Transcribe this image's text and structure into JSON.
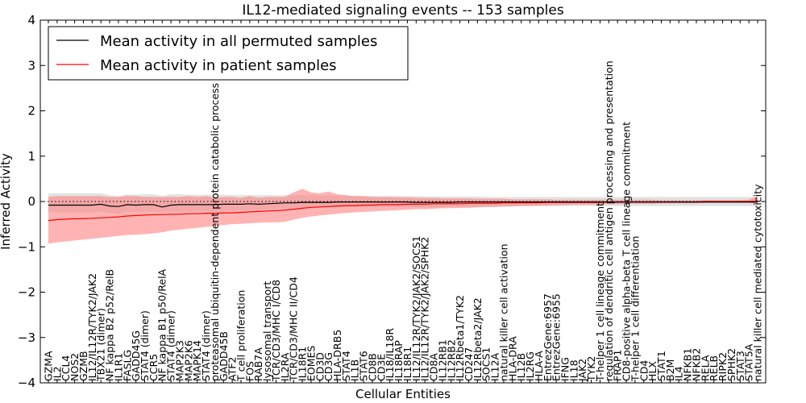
{
  "chart_data": {
    "type": "line",
    "title": "IL12-mediated signaling events -- 153 samples",
    "xlabel": "Cellular Entities",
    "ylabel": "Inferred Activity",
    "ylim": [
      -4,
      4
    ],
    "yticks": [
      -4,
      -3,
      -2,
      -1,
      0,
      1,
      2,
      3,
      4
    ],
    "grid": false,
    "legend_position": "top-left",
    "colors": {
      "permuted_line": "#000000",
      "permuted_band": "#bfbfbf",
      "patient_line": "#ff0000",
      "patient_band": "#ff8080"
    },
    "categories": [
      "GZMA",
      "IL2",
      "CCL4",
      "NOS2",
      "GZMB",
      "IL12/IL12R/TYK2/JAK2",
      "TBX21 (dimer)",
      "NF kappa B2 p52/RelB",
      "IL1R1",
      "FASLG",
      "GADD45G",
      "STAT4 (dimer)",
      "CCR5",
      "NF kappa B1 p50/RelA",
      "STAT4 (dimer)",
      "MAP2K3",
      "MAP2K6",
      "MAPK14",
      "STAT4 (dimer)",
      "proteasomal ubiquitin-dependent protein catabolic process",
      "GADD45B",
      "ATF2",
      "T cell proliferation",
      "FOS",
      "RAB7A",
      "lysosomal transport",
      "TCR/CD3/MHC I/CD8",
      "IL2RA",
      "TCR/CD3/MHC II/CD4",
      "IL18R1",
      "EOMES",
      "CD3D",
      "CD3G",
      "HLA-DRB5",
      "STAT4",
      "IL1B",
      "STAT6",
      "CD8B",
      "CD3E",
      "IL18/IL18R",
      "IL18RAP",
      "IL18R1",
      "IL12/IL12R/TYK2/JAK2/SOCS1",
      "IL12/IL12R/TYK2/JAK2/SPHK2",
      "CD8A",
      "IL12RB1",
      "IL12RB2",
      "IL12Rbeta1/TYK2",
      "CD247",
      "IL12Rbeta2/JAK2",
      "SOCS1",
      "IL12A",
      "natural killer cell activation",
      "HLA-DRA",
      "IL12B",
      "IL2RG",
      "HLA-A",
      "EntrezGene:6957",
      "EntrezGene:6955",
      "IFNG",
      "IL18",
      "JAK2",
      "TYK2",
      "T-helper 1 cell lineage commitment",
      "regulation of dendritic cell antigen processing and presentation",
      "FRAP1",
      "CD8-positive alpha-beta T cell lineage commitment",
      "T-helper 1 cell differentiation",
      "CD4",
      "HLX",
      "STAT1",
      "B2M",
      "IL4",
      "NFKB1",
      "NFKB2",
      "RELA",
      "RELB",
      "RIPK2",
      "SPHK2",
      "STAT3",
      "STAT5A",
      "natural killer cell mediated cytotoxicity"
    ],
    "series": [
      {
        "name": "Mean activity in all permuted samples",
        "values": [
          -0.08,
          -0.08,
          -0.08,
          -0.08,
          -0.08,
          -0.08,
          -0.06,
          -0.1,
          -0.11,
          -0.07,
          -0.08,
          -0.07,
          -0.07,
          -0.12,
          -0.08,
          -0.07,
          -0.07,
          -0.07,
          -0.07,
          -0.07,
          -0.06,
          -0.06,
          -0.06,
          -0.05,
          -0.06,
          -0.05,
          -0.04,
          -0.03,
          -0.03,
          -0.02,
          -0.02,
          -0.02,
          -0.02,
          -0.01,
          -0.01,
          -0.01,
          -0.01,
          -0.01,
          -0.01,
          -0.01,
          -0.01,
          -0.01,
          -0.02,
          -0.02,
          -0.02,
          -0.02,
          -0.02,
          -0.01,
          -0.01,
          -0.01,
          -0.01,
          -0.01,
          -0.01,
          -0.01,
          -0.01,
          -0.01,
          -0.01,
          -0.01,
          -0.01,
          -0.01,
          -0.01,
          -0.01,
          -0.01,
          -0.01,
          -0.01,
          -0.01,
          -0.01,
          -0.01,
          -0.01,
          -0.01,
          -0.01,
          -0.01,
          -0.01,
          -0.01,
          -0.01,
          -0.01,
          -0.01,
          -0.01,
          -0.01,
          -0.01,
          -0.01,
          -0.01
        ],
        "lower": [
          -0.22,
          -0.24,
          -0.24,
          -0.24,
          -0.24,
          -0.24,
          -0.22,
          -0.26,
          -0.27,
          -0.23,
          -0.24,
          -0.23,
          -0.22,
          -0.25,
          -0.22,
          -0.22,
          -0.22,
          -0.21,
          -0.21,
          -0.21,
          -0.2,
          -0.2,
          -0.19,
          -0.18,
          -0.18,
          -0.17,
          -0.16,
          -0.15,
          -0.15,
          -0.14,
          -0.14,
          -0.13,
          -0.13,
          -0.12,
          -0.12,
          -0.12,
          -0.12,
          -0.12,
          -0.12,
          -0.12,
          -0.12,
          -0.12,
          -0.13,
          -0.13,
          -0.13,
          -0.13,
          -0.12,
          -0.12,
          -0.12,
          -0.12,
          -0.11,
          -0.11,
          -0.11,
          -0.1,
          -0.1,
          -0.1,
          -0.1,
          -0.1,
          -0.1,
          -0.1,
          -0.1,
          -0.1,
          -0.1,
          -0.1,
          -0.1,
          -0.1,
          -0.1,
          -0.1,
          -0.1,
          -0.1,
          -0.1,
          -0.1,
          -0.1,
          -0.1,
          -0.1,
          -0.1,
          -0.1,
          -0.1,
          -0.1,
          -0.1,
          -0.1,
          -0.1
        ],
        "upper": [
          0.18,
          0.18,
          0.18,
          0.18,
          0.18,
          0.18,
          0.18,
          0.14,
          0.12,
          0.16,
          0.15,
          0.16,
          0.16,
          0.12,
          0.16,
          0.16,
          0.15,
          0.15,
          0.15,
          0.15,
          0.15,
          0.14,
          0.14,
          0.14,
          0.14,
          0.14,
          0.14,
          0.14,
          0.14,
          0.14,
          0.14,
          0.13,
          0.13,
          0.13,
          0.13,
          0.12,
          0.12,
          0.12,
          0.12,
          0.12,
          0.12,
          0.12,
          0.12,
          0.11,
          0.11,
          0.11,
          0.11,
          0.11,
          0.11,
          0.11,
          0.1,
          0.1,
          0.1,
          0.1,
          0.1,
          0.1,
          0.1,
          0.1,
          0.1,
          0.1,
          0.1,
          0.1,
          0.1,
          0.1,
          0.1,
          0.1,
          0.1,
          0.1,
          0.1,
          0.1,
          0.1,
          0.1,
          0.1,
          0.1,
          0.1,
          0.1,
          0.1,
          0.1,
          0.1,
          0.1,
          0.1,
          0.1
        ]
      },
      {
        "name": "Mean activity in patient samples",
        "values": [
          -0.42,
          -0.4,
          -0.39,
          -0.38,
          -0.38,
          -0.37,
          -0.36,
          -0.35,
          -0.34,
          -0.32,
          -0.31,
          -0.3,
          -0.29,
          -0.29,
          -0.28,
          -0.28,
          -0.27,
          -0.27,
          -0.26,
          -0.26,
          -0.25,
          -0.25,
          -0.24,
          -0.23,
          -0.22,
          -0.21,
          -0.2,
          -0.19,
          -0.17,
          -0.15,
          -0.13,
          -0.12,
          -0.11,
          -0.1,
          -0.09,
          -0.09,
          -0.08,
          -0.08,
          -0.07,
          -0.07,
          -0.07,
          -0.06,
          -0.06,
          -0.06,
          -0.05,
          -0.05,
          -0.05,
          -0.05,
          -0.04,
          -0.04,
          -0.04,
          -0.04,
          -0.03,
          -0.03,
          -0.03,
          -0.03,
          -0.03,
          -0.02,
          -0.02,
          -0.02,
          -0.02,
          -0.02,
          -0.02,
          -0.02,
          -0.01,
          -0.01,
          -0.01,
          -0.01,
          -0.01,
          -0.01,
          -0.01,
          -0.01,
          -0.01,
          -0.01,
          -0.01,
          0.0,
          0.0,
          0.0,
          0.0,
          0.0,
          0.0,
          0.01
        ],
        "lower": [
          -0.93,
          -0.9,
          -0.88,
          -0.86,
          -0.84,
          -0.82,
          -0.8,
          -0.78,
          -0.76,
          -0.74,
          -0.73,
          -0.72,
          -0.7,
          -0.68,
          -0.64,
          -0.62,
          -0.6,
          -0.58,
          -0.56,
          -0.54,
          -0.52,
          -0.5,
          -0.49,
          -0.48,
          -0.47,
          -0.46,
          -0.46,
          -0.45,
          -0.4,
          -0.36,
          -0.33,
          -0.31,
          -0.29,
          -0.27,
          -0.25,
          -0.24,
          -0.23,
          -0.22,
          -0.21,
          -0.2,
          -0.19,
          -0.18,
          -0.17,
          -0.17,
          -0.16,
          -0.15,
          -0.15,
          -0.14,
          -0.14,
          -0.13,
          -0.12,
          -0.12,
          -0.11,
          -0.11,
          -0.1,
          -0.1,
          -0.09,
          -0.09,
          -0.08,
          -0.08,
          -0.07,
          -0.07,
          -0.07,
          -0.06,
          -0.06,
          -0.06,
          -0.05,
          -0.05,
          -0.05,
          -0.05,
          -0.04,
          -0.04,
          -0.04,
          -0.04,
          -0.04,
          -0.03,
          -0.03,
          -0.03,
          -0.03,
          -0.03,
          -0.03,
          -0.05
        ],
        "upper": [
          0.1,
          0.12,
          0.12,
          0.12,
          0.12,
          0.12,
          0.12,
          0.1,
          0.1,
          0.12,
          0.12,
          0.1,
          0.1,
          0.1,
          0.1,
          0.1,
          0.12,
          0.1,
          0.12,
          0.08,
          0.1,
          0.1,
          0.08,
          0.12,
          0.08,
          0.1,
          0.1,
          0.1,
          0.2,
          0.28,
          0.2,
          0.18,
          0.22,
          0.16,
          0.14,
          0.12,
          0.12,
          0.1,
          0.1,
          0.1,
          0.09,
          0.09,
          0.08,
          0.08,
          0.08,
          0.07,
          0.07,
          0.07,
          0.07,
          0.06,
          0.06,
          0.06,
          0.06,
          0.05,
          0.05,
          0.05,
          0.05,
          0.05,
          0.04,
          0.04,
          0.04,
          0.04,
          0.04,
          0.04,
          0.04,
          0.04,
          0.04,
          0.04,
          0.04,
          0.04,
          0.03,
          0.03,
          0.03,
          0.03,
          0.03,
          0.03,
          0.03,
          0.03,
          0.03,
          0.03,
          0.04,
          0.12
        ]
      }
    ]
  }
}
